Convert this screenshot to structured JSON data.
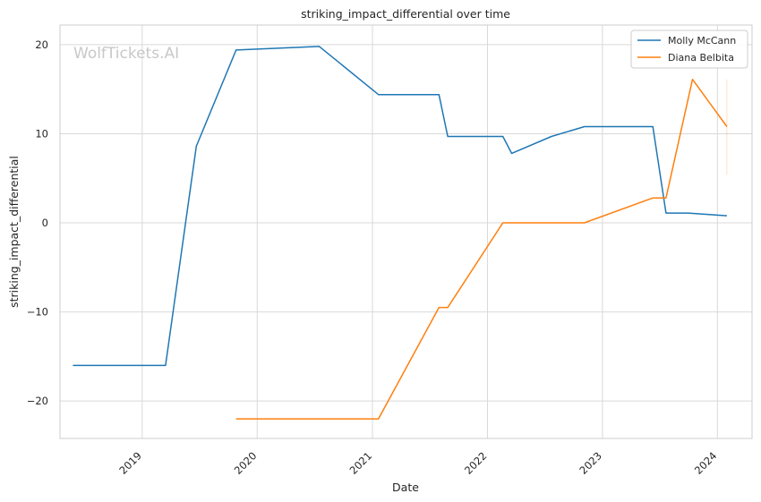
{
  "chart_data": {
    "type": "line",
    "title": "striking_impact_differential over time",
    "xlabel": "Date",
    "ylabel": "striking_impact_differential",
    "watermark": "WolfTickets.AI",
    "x_ticks": [
      "2019",
      "2020",
      "2021",
      "2022",
      "2023",
      "2024"
    ],
    "y_ticks": [
      "20",
      "10",
      "0",
      "−10",
      "−20"
    ],
    "xlim": [
      "2018-04-15",
      "2024-04-20"
    ],
    "ylim": [
      -24.2,
      22.2
    ],
    "grid": true,
    "legend_position": "top-right",
    "series": [
      {
        "name": "Molly McCann",
        "color": "#1f77b4",
        "points": [
          [
            "2018-05-26",
            -16.0
          ],
          [
            "2019-03-16",
            -16.0
          ],
          [
            "2019-06-22",
            8.6
          ],
          [
            "2019-10-26",
            19.4
          ],
          [
            "2020-07-16",
            19.8
          ],
          [
            "2021-01-20",
            14.4
          ],
          [
            "2021-07-31",
            14.4
          ],
          [
            "2021-08-28",
            9.7
          ],
          [
            "2022-02-19",
            9.7
          ],
          [
            "2022-03-19",
            7.8
          ],
          [
            "2022-07-23",
            9.7
          ],
          [
            "2022-11-05",
            10.8
          ],
          [
            "2023-06-10",
            10.8
          ],
          [
            "2023-07-22",
            1.1
          ],
          [
            "2023-09-30",
            1.1
          ],
          [
            "2024-01-31",
            0.8
          ]
        ]
      },
      {
        "name": "Diana Belbita",
        "color": "#ff7f0e",
        "points": [
          [
            "2019-10-26",
            -22.0
          ],
          [
            "2021-01-20",
            -22.0
          ],
          [
            "2021-07-31",
            -9.5
          ],
          [
            "2021-08-28",
            -9.5
          ],
          [
            "2022-02-19",
            0.0
          ],
          [
            "2022-11-05",
            0.0
          ],
          [
            "2023-06-10",
            2.8
          ],
          [
            "2023-07-22",
            2.8
          ],
          [
            "2023-10-14",
            16.1
          ],
          [
            "2024-01-31",
            10.8
          ]
        ]
      }
    ]
  }
}
